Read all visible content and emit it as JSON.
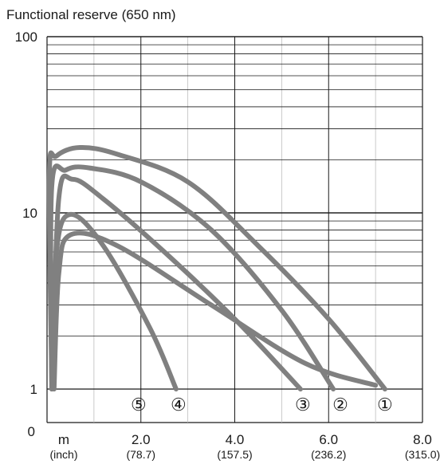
{
  "chart_data": {
    "type": "line",
    "title": "Functional reserve (650 nm)",
    "x_unit": "m",
    "x_unit_alt": "(inch)",
    "xlim": [
      0,
      8
    ],
    "ylim": [
      1,
      100
    ],
    "y_scale": "log",
    "y_ticks": [
      {
        "value": 1,
        "label": "1"
      },
      {
        "value": 10,
        "label": "10"
      },
      {
        "value": 100,
        "label": "100"
      }
    ],
    "y_zero_label": "0",
    "x_ticks": [
      {
        "value": 2,
        "label": "2.0",
        "sublabel": "(78.7)"
      },
      {
        "value": 4,
        "label": "4.0",
        "sublabel": "(157.5)"
      },
      {
        "value": 6,
        "label": "6.0",
        "sublabel": "(236.2)"
      },
      {
        "value": 8,
        "label": "8.0",
        "sublabel": "(315.0)"
      }
    ],
    "grid": true,
    "series_color": "#808080",
    "series": [
      {
        "name": "①",
        "points": [
          [
            0.1,
            1.1
          ],
          [
            0.05,
            16.5
          ],
          [
            0.2,
            21
          ],
          [
            0.7,
            23.5
          ],
          [
            1.5,
            21.5
          ],
          [
            3,
            15
          ],
          [
            4.5,
            6.5
          ],
          [
            6,
            2.5
          ],
          [
            7.2,
            1
          ]
        ]
      },
      {
        "name": "②",
        "points": [
          [
            0.1,
            1
          ],
          [
            0.1,
            14
          ],
          [
            0.4,
            17.5
          ],
          [
            0.9,
            18
          ],
          [
            2,
            15
          ],
          [
            3.5,
            8
          ],
          [
            5,
            2.8
          ],
          [
            6.1,
            1
          ]
        ]
      },
      {
        "name": "③",
        "points": [
          [
            0.1,
            1
          ],
          [
            0.25,
            12
          ],
          [
            0.55,
            15.5
          ],
          [
            1.2,
            12
          ],
          [
            2.5,
            6
          ],
          [
            4,
            2.5
          ],
          [
            5.4,
            1
          ]
        ]
      },
      {
        "name": "④",
        "points": [
          [
            0.1,
            1
          ],
          [
            0.2,
            6
          ],
          [
            0.5,
            9.8
          ],
          [
            1.2,
            6.5
          ],
          [
            2.2,
            2.2
          ],
          [
            2.75,
            1
          ]
        ]
      },
      {
        "name": "⑤",
        "points": [
          [
            0.15,
            1
          ],
          [
            0.25,
            4.5
          ],
          [
            0.5,
            7.5
          ],
          [
            1.5,
            6.5
          ],
          [
            3.5,
            3
          ],
          [
            5.5,
            1.4
          ],
          [
            7,
            1.05
          ]
        ]
      }
    ],
    "curve_markers": [
      {
        "label": "①",
        "x": 7.2
      },
      {
        "label": "②",
        "x": 6.25
      },
      {
        "label": "③",
        "x": 5.45
      },
      {
        "label": "④",
        "x": 2.8
      },
      {
        "label": "⑤",
        "x": 1.95
      }
    ]
  }
}
